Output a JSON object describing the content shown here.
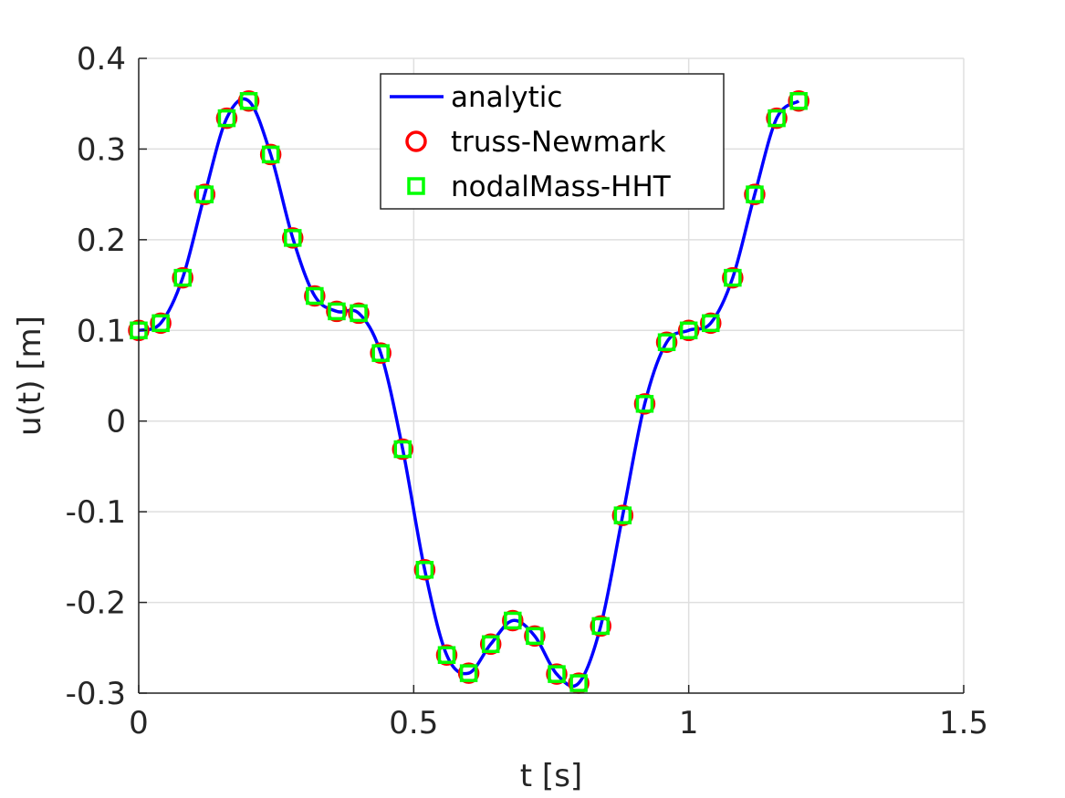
{
  "chart_data": {
    "type": "line",
    "xlabel": "t [s]",
    "ylabel": "u(t) [m]",
    "xlim": [
      0,
      1.5
    ],
    "ylim": [
      -0.3,
      0.4
    ],
    "xticks": [
      0,
      0.5,
      1,
      1.5
    ],
    "xtick_labels": [
      "0",
      "0.5",
      "1",
      "1.5"
    ],
    "yticks": [
      -0.3,
      -0.2,
      -0.1,
      0,
      0.1,
      0.2,
      0.3,
      0.4
    ],
    "ytick_labels": [
      "-0.3",
      "-0.2",
      "-0.1",
      "0",
      "0.1",
      "0.2",
      "0.3",
      "0.4"
    ],
    "grid": true,
    "legend_position": "top-center",
    "series": [
      {
        "name": "analytic",
        "style": "line",
        "color": "#0000ff",
        "x": [
          0,
          0.04,
          0.08,
          0.12,
          0.16,
          0.2,
          0.24,
          0.28,
          0.32,
          0.36,
          0.4,
          0.44,
          0.48,
          0.52,
          0.56,
          0.6,
          0.64,
          0.68,
          0.72,
          0.76,
          0.8,
          0.84,
          0.88,
          0.92,
          0.96,
          1.0,
          1.04,
          1.08,
          1.12,
          1.16,
          1.2
        ],
        "values": [
          0.1,
          0.108,
          0.158,
          0.25,
          0.334,
          0.353,
          0.294,
          0.202,
          0.138,
          0.121,
          0.119,
          0.075,
          -0.031,
          -0.164,
          -0.258,
          -0.278,
          -0.246,
          -0.22,
          -0.237,
          -0.279,
          -0.289,
          -0.226,
          -0.104,
          0.019,
          0.087,
          0.1,
          0.108,
          0.158,
          0.25,
          0.334,
          0.353
        ]
      },
      {
        "name": "truss-Newmark",
        "style": "circle-marker",
        "color": "#ff0000",
        "x": [
          0,
          0.04,
          0.08,
          0.12,
          0.16,
          0.2,
          0.24,
          0.28,
          0.32,
          0.36,
          0.4,
          0.44,
          0.48,
          0.52,
          0.56,
          0.6,
          0.64,
          0.68,
          0.72,
          0.76,
          0.8,
          0.84,
          0.88,
          0.92,
          0.96,
          1.0,
          1.04,
          1.08,
          1.12,
          1.16,
          1.2
        ],
        "values": [
          0.1,
          0.108,
          0.158,
          0.25,
          0.334,
          0.353,
          0.294,
          0.202,
          0.138,
          0.121,
          0.119,
          0.075,
          -0.031,
          -0.164,
          -0.258,
          -0.278,
          -0.246,
          -0.22,
          -0.237,
          -0.279,
          -0.289,
          -0.226,
          -0.104,
          0.019,
          0.087,
          0.1,
          0.108,
          0.158,
          0.25,
          0.334,
          0.353
        ]
      },
      {
        "name": "nodalMass-HHT",
        "style": "square-marker",
        "color": "#00ff00",
        "x": [
          0,
          0.04,
          0.08,
          0.12,
          0.16,
          0.2,
          0.24,
          0.28,
          0.32,
          0.36,
          0.4,
          0.44,
          0.48,
          0.52,
          0.56,
          0.6,
          0.64,
          0.68,
          0.72,
          0.76,
          0.8,
          0.84,
          0.88,
          0.92,
          0.96,
          1.0,
          1.04,
          1.08,
          1.12,
          1.16,
          1.2
        ],
        "values": [
          0.1,
          0.108,
          0.158,
          0.25,
          0.334,
          0.353,
          0.294,
          0.202,
          0.138,
          0.121,
          0.119,
          0.075,
          -0.031,
          -0.164,
          -0.258,
          -0.278,
          -0.246,
          -0.22,
          -0.237,
          -0.279,
          -0.289,
          -0.226,
          -0.104,
          0.019,
          0.087,
          0.1,
          0.108,
          0.158,
          0.25,
          0.334,
          0.353
        ]
      }
    ]
  }
}
